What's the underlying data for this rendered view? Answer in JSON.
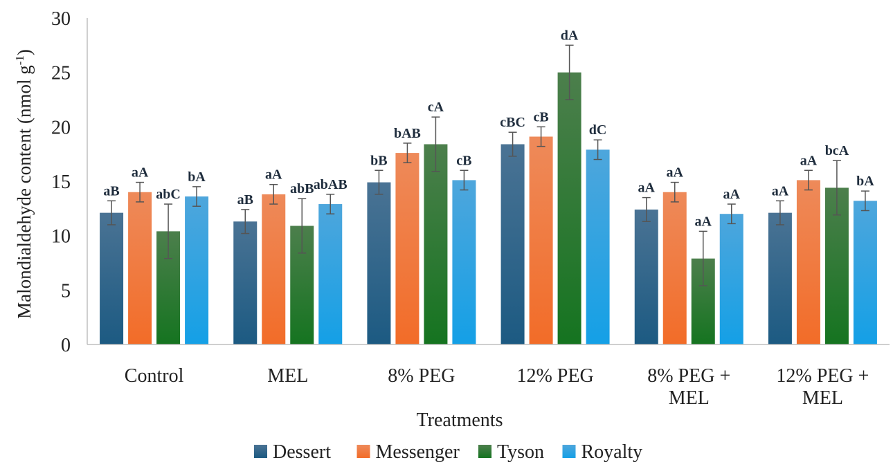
{
  "chart_data": {
    "type": "bar",
    "ylabel_main": "Malondialdehyde content (nmol g",
    "ylabel_sup": "-1",
    "ylabel_close": ")",
    "xlabel": "Treatments",
    "ylim": [
      0,
      30
    ],
    "yticks": [
      "0",
      "5",
      "10",
      "15",
      "20",
      "25",
      "30"
    ],
    "ytick_values": [
      0,
      5,
      10,
      15,
      20,
      25,
      30
    ],
    "categories": [
      [
        "Control"
      ],
      [
        "MEL"
      ],
      [
        "8% PEG"
      ],
      [
        "12% PEG"
      ],
      [
        "8% PEG +",
        "MEL"
      ],
      [
        "12% PEG +",
        "MEL"
      ]
    ],
    "legend_position": "bottom",
    "grid": false,
    "series": [
      {
        "name": "Dessert",
        "color_top": "#4a7394",
        "color_bottom": "#1c5a82",
        "values": [
          12.1,
          11.3,
          14.9,
          18.4,
          12.4,
          12.1
        ],
        "errors": [
          1.1,
          1.1,
          1.1,
          1.1,
          1.1,
          1.1
        ],
        "labels": [
          "aB",
          "aB",
          "bB",
          "cBC",
          "aA",
          "aA"
        ]
      },
      {
        "name": "Messenger",
        "color_top": "#ee8a5a",
        "color_bottom": "#f26c28",
        "values": [
          14.0,
          13.8,
          17.6,
          19.1,
          14.0,
          15.1
        ],
        "errors": [
          0.9,
          0.9,
          0.9,
          0.9,
          0.9,
          0.9
        ],
        "labels": [
          "aA",
          "aA",
          "bAB",
          "cB",
          "aA",
          "aA"
        ]
      },
      {
        "name": "Tyson",
        "color_top": "#4c7f4c",
        "color_bottom": "#157420",
        "values": [
          10.4,
          10.9,
          18.4,
          25.0,
          7.9,
          14.4
        ],
        "errors": [
          2.5,
          2.5,
          2.5,
          2.5,
          2.5,
          2.5
        ],
        "labels": [
          "abC",
          "abB",
          "cA",
          "dA",
          "aA",
          "bcA"
        ]
      },
      {
        "name": "Royalty",
        "color_top": "#4ea6dc",
        "color_bottom": "#14a0e6",
        "values": [
          13.6,
          12.9,
          15.1,
          17.9,
          12.0,
          13.2
        ],
        "errors": [
          0.9,
          0.9,
          0.9,
          0.9,
          0.9,
          0.9
        ],
        "labels": [
          "bA",
          "abAB",
          "cB",
          "dC",
          "aA",
          "bA"
        ]
      }
    ]
  }
}
